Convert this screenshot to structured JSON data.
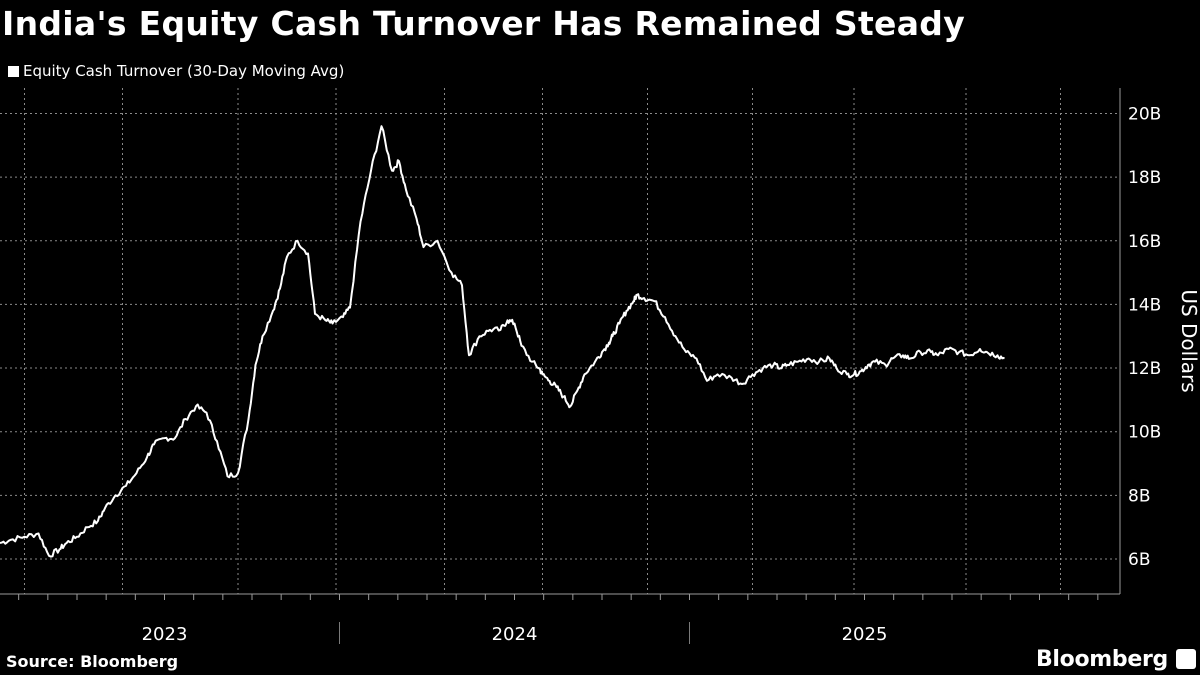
{
  "chart_data": {
    "type": "line",
    "title": "India's Equity Cash Turnover Has Remained Steady",
    "ylabel": "US Dollars",
    "xlabel": "",
    "ylim": [
      4.9,
      20.8
    ],
    "yticks": [
      6,
      8,
      10,
      12,
      14,
      16,
      18,
      20
    ],
    "ytick_labels": [
      "6B",
      "8B",
      "10B",
      "12B",
      "14B",
      "16B",
      "18B",
      "20B"
    ],
    "xlim": [
      2022.53,
      2025.73
    ],
    "year_labels": [
      {
        "label": "2023",
        "x": 2023.0
      },
      {
        "label": "2024",
        "x": 2024.0
      },
      {
        "label": "2025",
        "x": 2025.0
      }
    ],
    "year_boundaries": [
      2023.5,
      2024.5
    ],
    "vgrid_x": [
      2022.6,
      2022.88,
      2023.21,
      2023.49,
      2023.8,
      2024.08,
      2024.38,
      2024.68,
      2024.97,
      2025.29,
      2025.56
    ],
    "legend_position": "top-left",
    "grid": true,
    "series": [
      {
        "name": "Equity Cash Turnover (30-Day Moving Avg)",
        "x": [
          2022.53,
          2022.56,
          2022.6,
          2022.64,
          2022.67,
          2022.7,
          2022.72,
          2022.75,
          2022.78,
          2022.81,
          2022.83,
          2022.86,
          2022.89,
          2022.92,
          2022.95,
          2022.97,
          2023.0,
          2023.03,
          2023.06,
          2023.09,
          2023.12,
          2023.15,
          2023.18,
          2023.21,
          2023.24,
          2023.26,
          2023.28,
          2023.31,
          2023.33,
          2023.35,
          2023.38,
          2023.41,
          2023.43,
          2023.46,
          2023.48,
          2023.51,
          2023.53,
          2023.56,
          2023.59,
          2023.62,
          2023.65,
          2023.67,
          2023.69,
          2023.72,
          2023.74,
          2023.78,
          2023.82,
          2023.85,
          2023.87,
          2023.9,
          2023.93,
          2023.96,
          2023.98,
          2024.0,
          2024.02,
          2024.05,
          2024.07,
          2024.08,
          2024.1,
          2024.12,
          2024.14,
          2024.16,
          2024.18,
          2024.2,
          2024.23,
          2024.25,
          2024.27,
          2024.28,
          2024.3,
          2024.32,
          2024.34,
          2024.35,
          2024.37,
          2024.4,
          2024.43,
          2024.46,
          2024.49,
          2024.52,
          2024.55,
          2024.58,
          2024.62,
          2024.65,
          2024.68,
          2024.71,
          2024.74,
          2024.76,
          2024.78,
          2024.81,
          2024.84,
          2024.87,
          2024.9,
          2024.92,
          2024.95,
          2024.97,
          2024.99,
          2025.01,
          2025.03,
          2025.06,
          2025.08,
          2025.11,
          2025.13,
          2025.16,
          2025.19,
          2025.21,
          2025.24,
          2025.27,
          2025.3,
          2025.33,
          2025.35,
          2025.38,
          2025.4
        ],
        "values": [
          6.5,
          6.6,
          6.7,
          6.8,
          6.1,
          6.3,
          6.5,
          6.7,
          7.0,
          7.2,
          7.6,
          8.0,
          8.3,
          8.7,
          9.2,
          9.6,
          9.8,
          9.8,
          10.4,
          10.8,
          10.6,
          9.7,
          8.6,
          8.7,
          10.4,
          12.1,
          13.0,
          13.8,
          14.5,
          15.5,
          16.0,
          15.6,
          13.7,
          13.5,
          13.4,
          13.6,
          13.9,
          16.6,
          18.2,
          19.6,
          18.2,
          18.5,
          17.6,
          16.7,
          15.8,
          16.0,
          15.0,
          14.6,
          12.4,
          13.0,
          13.2,
          13.2,
          13.5,
          13.4,
          12.7,
          12.2,
          12.0,
          11.8,
          11.6,
          11.4,
          11.1,
          10.8,
          11.3,
          11.8,
          12.2,
          12.5,
          12.8,
          13.0,
          13.4,
          13.8,
          14.1,
          14.3,
          14.2,
          14.1,
          13.6,
          13.0,
          12.5,
          12.3,
          11.6,
          11.8,
          11.7,
          11.5,
          11.8,
          12.0,
          12.1,
          12.0,
          12.1,
          12.2,
          12.3,
          12.2,
          12.3,
          12.0,
          11.8,
          11.8,
          11.9,
          12.1,
          12.2,
          12.1,
          12.3,
          12.4,
          12.3,
          12.5,
          12.5,
          12.4,
          12.6,
          12.5,
          12.4,
          12.6,
          12.5,
          12.4,
          12.3
        ]
      }
    ]
  },
  "legend": {
    "label": "Equity Cash Turnover (30-Day Moving Avg)"
  },
  "footer": {
    "source": "Source: Bloomberg",
    "brand": "Bloomberg"
  }
}
